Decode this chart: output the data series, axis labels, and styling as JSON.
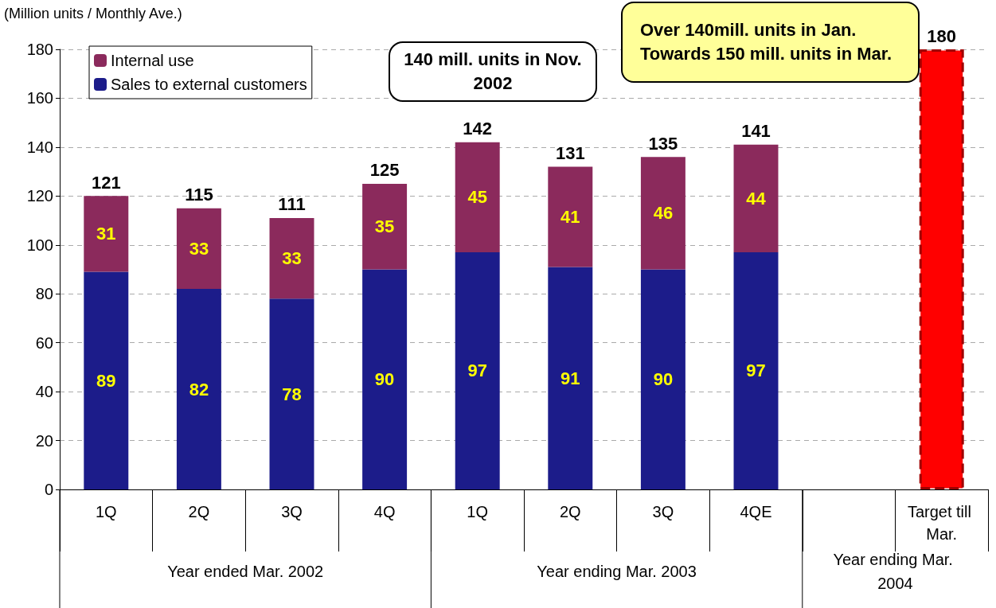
{
  "chart_data": {
    "type": "bar",
    "stacked": true,
    "ylabel": "(Million units / Monthly Ave.)",
    "categories": [
      "1Q",
      "2Q",
      "3Q",
      "4Q",
      "1Q",
      "2Q",
      "3Q",
      "4QE",
      null,
      "Target till Mar."
    ],
    "series": [
      {
        "name": "Sales to external customers",
        "color": "#1c1c8a",
        "values": [
          89,
          82,
          78,
          90,
          97,
          91,
          90,
          97,
          null,
          null
        ],
        "value_labels": [
          "89",
          "82",
          "78",
          "90",
          "97",
          "91",
          "90",
          "97",
          null,
          null
        ]
      },
      {
        "name": "Internal use",
        "color": "#8b2a5c",
        "values": [
          31,
          33,
          33,
          35,
          45,
          41,
          46,
          44,
          null,
          null
        ],
        "value_labels": [
          "31",
          "33",
          "33",
          "35",
          "45",
          "41",
          "46",
          "44",
          null,
          null
        ]
      },
      {
        "color": "#ff0000",
        "values": [
          null,
          null,
          null,
          null,
          null,
          null,
          null,
          null,
          null,
          180
        ]
      }
    ],
    "totals": [
      "121",
      "115",
      "111",
      "125",
      "142",
      "131",
      "135",
      "141",
      null,
      "180"
    ],
    "ylim": [
      0,
      180
    ],
    "yticks": [
      0,
      20,
      40,
      60,
      80,
      100,
      120,
      140,
      160,
      180
    ],
    "grid": "y",
    "legend": "top left",
    "annotations": [
      "140 mill. units in Nov. 2002",
      "Over 140mill. units in Jan. Towards 150 mill. units in Mar.",
      "Year ended Mar. 2002",
      "Year ending Mar. 2003",
      "Year ending Mar. 2004"
    ]
  }
}
